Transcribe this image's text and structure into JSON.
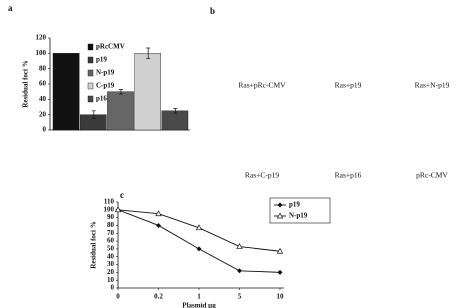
{
  "panels": {
    "a": "a",
    "b": "b",
    "c": "c"
  },
  "panel_b_labels": [
    "Ras+pRc-CMV",
    "Ras+p19",
    "Ras+N-p19",
    "Ras+C-p19",
    "Ras+p16",
    "pRc-CMV"
  ],
  "chart_data": [
    {
      "type": "bar",
      "y_label": "Residual foci %",
      "ylim": [
        0,
        120
      ],
      "yticks": [
        0,
        20,
        40,
        60,
        80,
        100,
        120
      ],
      "series": [
        {
          "name": "pRcCMV",
          "color": "#111111",
          "values": [
            100
          ]
        },
        {
          "name": "p19",
          "color": "#3a3a3a",
          "values": [
            20
          ],
          "errors": [
            5
          ]
        },
        {
          "name": "N-p19",
          "color": "#666666",
          "values": [
            50
          ],
          "errors": [
            3
          ]
        },
        {
          "name": "C-p19",
          "color": "#d0d0d0",
          "values": [
            100
          ],
          "errors": [
            7
          ]
        },
        {
          "name": "p16",
          "color": "#4a4a4a",
          "values": [
            25
          ],
          "errors": [
            3
          ]
        }
      ]
    },
    {
      "type": "line",
      "y_label": "Residual foci %",
      "x_label": "Plasmid µg",
      "categories": [
        "0",
        "0.2",
        "1",
        "5",
        "10"
      ],
      "ylim": [
        0,
        110
      ],
      "yticks": [
        0,
        10,
        20,
        30,
        40,
        50,
        60,
        70,
        80,
        90,
        100,
        110
      ],
      "series": [
        {
          "name": "p19",
          "color": "#111111",
          "marker": "diamond",
          "values": [
            100,
            80,
            50,
            22,
            20
          ]
        },
        {
          "name": "N-p19",
          "color": "#111111",
          "marker": "triangle",
          "values": [
            100,
            95,
            77,
            53,
            47
          ]
        }
      ]
    }
  ]
}
